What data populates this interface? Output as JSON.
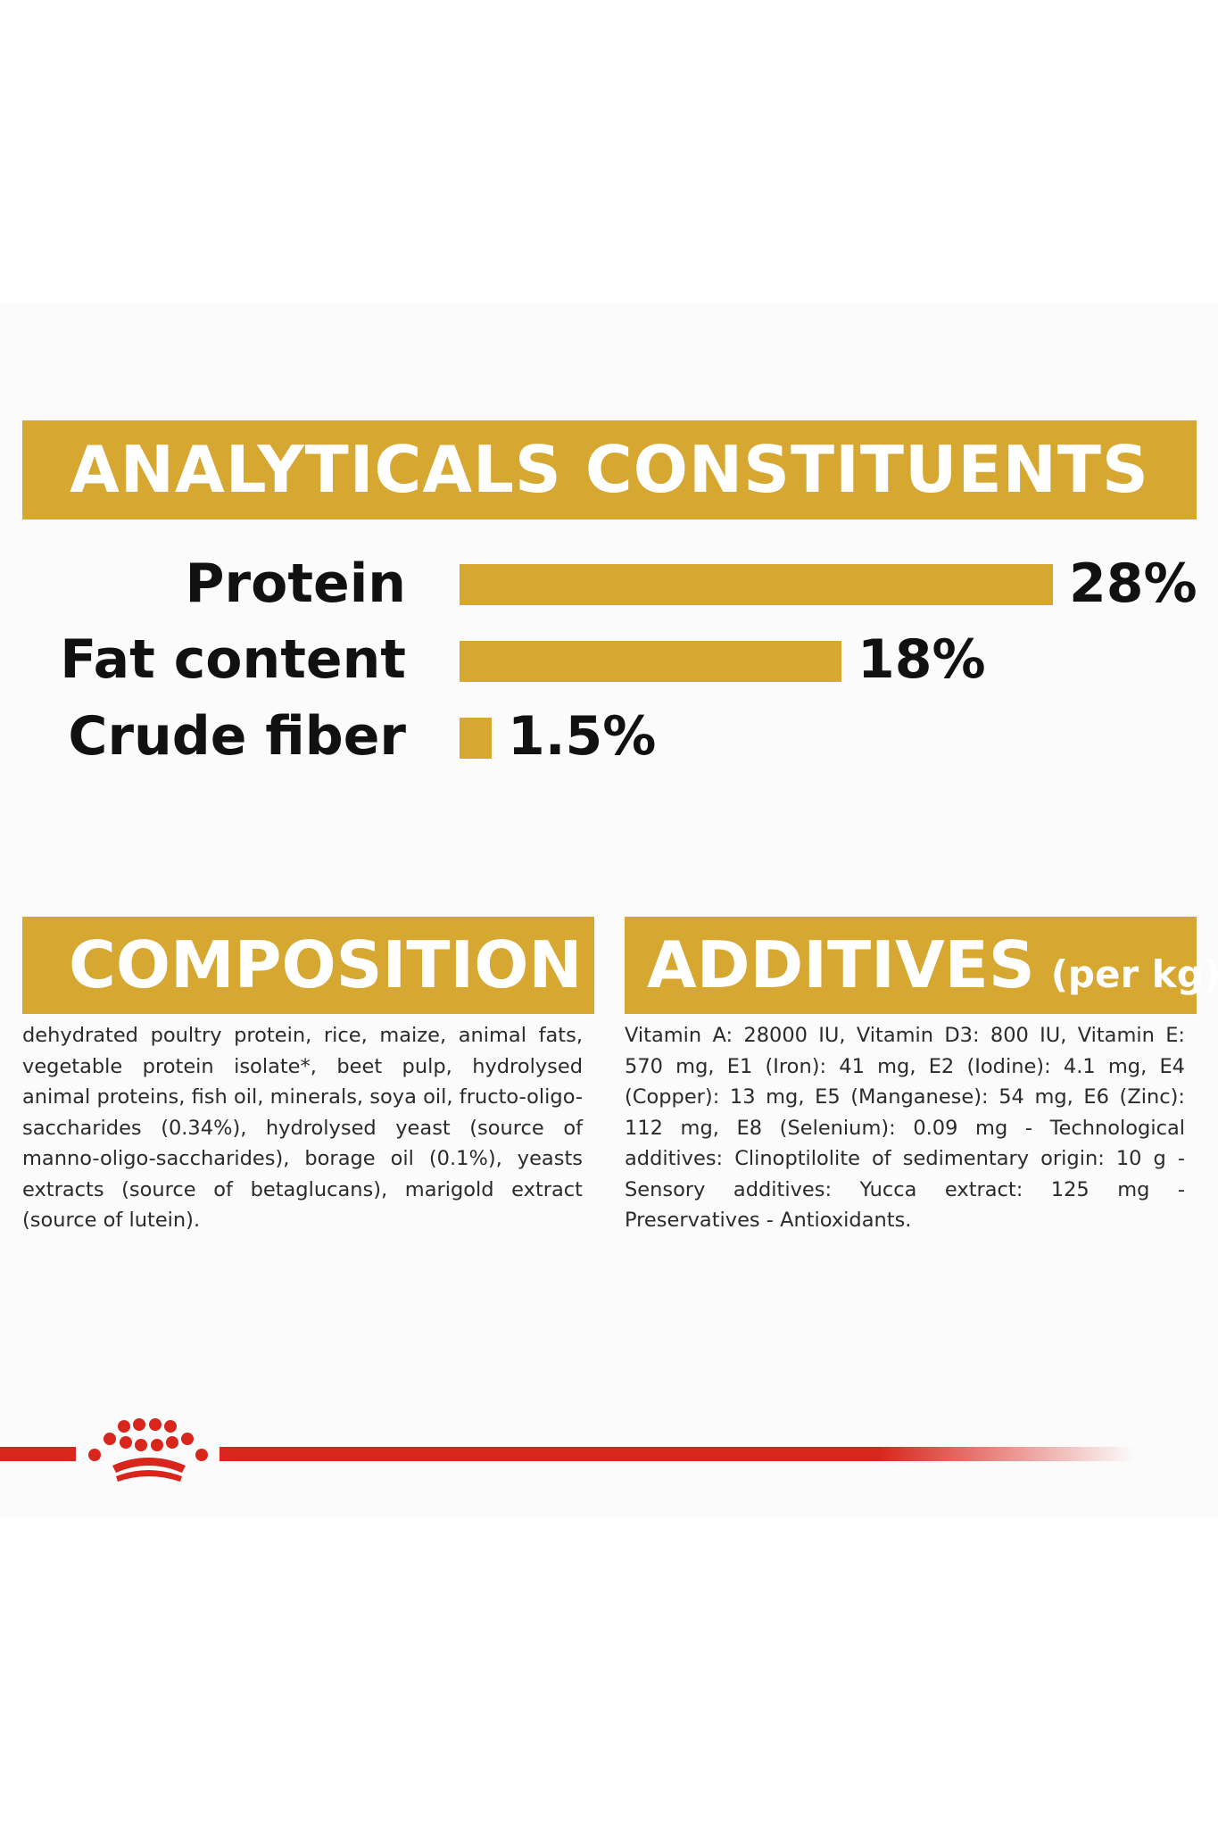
{
  "colors": {
    "accent": "#d6a731",
    "brand_red": "#d9261c",
    "text": "#111111"
  },
  "analytics": {
    "title": "ANALYTICALS CONSTITUENTS",
    "rows": [
      {
        "label": "Protein",
        "value_text": "28%",
        "value": 28
      },
      {
        "label": "Fat content",
        "value_text": "18%",
        "value": 18
      },
      {
        "label": "Crude fiber",
        "value_text": "1.5%",
        "value": 1.5
      }
    ]
  },
  "composition": {
    "title": "COMPOSITION",
    "text": "dehydrated poultry protein, rice, maize, animal fats, vegetable protein isolate*, beet pulp, hydrolysed animal proteins, fish oil, minerals, soya oil, fructo-oligo-saccharides (0.34%), hydrolysed yeast (source of manno-oligo-saccharides), borage oil (0.1%), yeasts extracts (source of betaglucans), marigold extract (source of lutein)."
  },
  "additives": {
    "title": "ADDITIVES",
    "unit": "(per kg)",
    "text": "Vitamin A: 28000 IU, Vitamin D3: 800 IU, Vitamin E: 570 mg, E1 (Iron): 41 mg, E2 (Iodine): 4.1 mg, E4 (Copper): 13 mg, E5 (Manganese): 54 mg, E6 (Zinc): 112 mg, E8 (Selenium): 0.09 mg - Technological additives: Clinoptilolite of sedimentary origin: 10 g - Sensory additives: Yucca extract: 125 mg - Preservatives - Antioxidants."
  },
  "logo": {
    "icon": "crown-icon"
  }
}
